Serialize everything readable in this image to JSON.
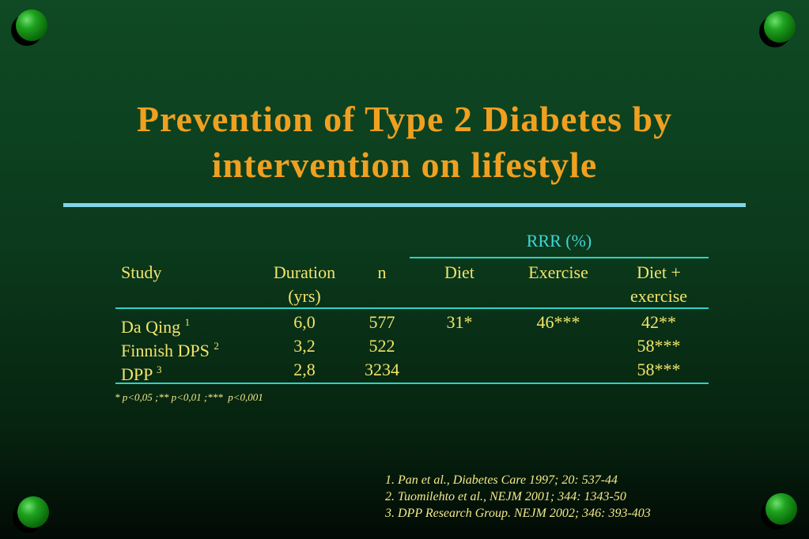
{
  "slide": {
    "title_line1": "Prevention of Type 2 Diabetes by",
    "title_line2": "intervention on lifestyle"
  },
  "table": {
    "group_header": "RRR (%)",
    "headers": {
      "study": "Study",
      "duration_line1": "Duration",
      "duration_line2": "(yrs)",
      "n": "n",
      "diet": "Diet",
      "exercise": "Exercise",
      "diet_exercise_line1": "Diet +",
      "diet_exercise_line2": "exercise"
    },
    "rows": [
      {
        "study": "Da Qing",
        "ref": "1",
        "duration": "6,0",
        "n": "577",
        "diet": "31*",
        "exercise": "46***",
        "diet_exercise": "42**"
      },
      {
        "study": "Finnish DPS",
        "ref": "2",
        "duration": "3,2",
        "n": "522",
        "diet": "",
        "exercise": "",
        "diet_exercise": "58***"
      },
      {
        "study": "DPP",
        "ref": "3",
        "duration": "2,8",
        "n": "3234",
        "diet": "",
        "exercise": "",
        "diet_exercise": "58***"
      }
    ],
    "footnote": "* p<0,05 ;** p<0,01 ;***  p<0,001"
  },
  "references": [
    "1. Pan et al., Diabetes Care 1997; 20: 537-44",
    "2. Tuomilehto et al., NEJM 2001; 344: 1343-50",
    "3. DPP Research Group. NEJM 2002; 346: 393-403"
  ],
  "colors": {
    "title": "#f0a020",
    "table_text": "#f2e46a",
    "rrr_header": "#3fd6d6",
    "rules": "#2ed3c6",
    "title_rule": "#7fd6e8"
  }
}
